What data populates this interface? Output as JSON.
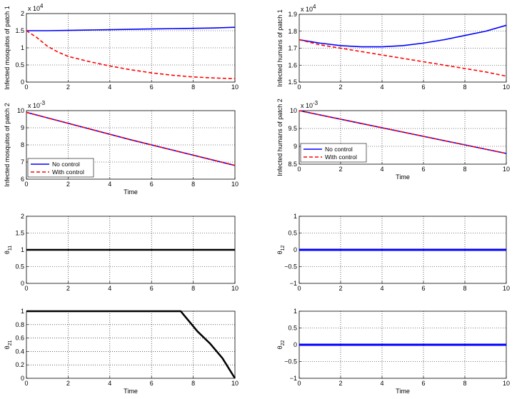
{
  "chart_data": [
    {
      "type": "line",
      "ylabel": "Infected mosquitos of patch 1",
      "xlabel": "",
      "exponent": "x 10^4",
      "xlim": [
        0,
        10
      ],
      "ylim": [
        0,
        2
      ],
      "xticks": [
        "0",
        "2",
        "4",
        "6",
        "8",
        "10"
      ],
      "yticks": [
        "0",
        "0.5",
        "1",
        "1.5",
        "2"
      ],
      "series": [
        {
          "name": "No control",
          "color": "#0000ff",
          "style": "solid",
          "x": [
            0,
            1,
            2,
            3,
            4,
            5,
            6,
            7,
            8,
            9,
            10
          ],
          "y": [
            1.5,
            1.5,
            1.51,
            1.52,
            1.53,
            1.54,
            1.55,
            1.56,
            1.57,
            1.58,
            1.6
          ]
        },
        {
          "name": "With control",
          "color": "#ff0000",
          "style": "dashed",
          "x": [
            0,
            0.5,
            1,
            1.5,
            2,
            3,
            4,
            5,
            6,
            7,
            8,
            9,
            10
          ],
          "y": [
            1.5,
            1.3,
            1.05,
            0.88,
            0.75,
            0.6,
            0.47,
            0.36,
            0.27,
            0.2,
            0.15,
            0.12,
            0.1
          ]
        }
      ]
    },
    {
      "type": "line",
      "ylabel": "Infected humans of patch 1",
      "xlabel": "",
      "exponent": "x 10^4",
      "xlim": [
        0,
        10
      ],
      "ylim": [
        1.5,
        1.9
      ],
      "xticks": [
        "0",
        "2",
        "4",
        "6",
        "8",
        "10"
      ],
      "yticks": [
        "1.5",
        "1.6",
        "1.7",
        "1.8",
        "1.9"
      ],
      "series": [
        {
          "name": "No control",
          "color": "#0000ff",
          "style": "solid",
          "x": [
            0,
            1,
            2,
            3,
            4,
            5,
            6,
            7,
            8,
            9,
            10
          ],
          "y": [
            1.75,
            1.73,
            1.715,
            1.708,
            1.708,
            1.715,
            1.73,
            1.75,
            1.775,
            1.8,
            1.835
          ]
        },
        {
          "name": "With control",
          "color": "#ff0000",
          "style": "dashed",
          "x": [
            0,
            1,
            2,
            3,
            4,
            5,
            6,
            7,
            8,
            9,
            10
          ],
          "y": [
            1.75,
            1.72,
            1.7,
            1.68,
            1.66,
            1.64,
            1.62,
            1.6,
            1.58,
            1.56,
            1.535
          ]
        }
      ]
    },
    {
      "type": "line",
      "ylabel": "Infected mosquitos of patch 2",
      "xlabel": "Time",
      "exponent": "x 10^-3",
      "xlim": [
        0,
        10
      ],
      "ylim": [
        6,
        10
      ],
      "xticks": [
        "0",
        "2",
        "4",
        "6",
        "8",
        "10"
      ],
      "yticks": [
        "6",
        "7",
        "8",
        "9",
        "10"
      ],
      "legend": {
        "placement": "bottom-left",
        "entries": [
          "No control",
          "With control"
        ]
      },
      "series": [
        {
          "name": "No control",
          "color": "#0000ff",
          "style": "solid",
          "x": [
            0,
            5,
            10
          ],
          "y": [
            9.9,
            8.3,
            6.8
          ]
        },
        {
          "name": "With control",
          "color": "#ff0000",
          "style": "dashed",
          "x": [
            0,
            5,
            10
          ],
          "y": [
            9.9,
            8.3,
            6.8
          ]
        }
      ]
    },
    {
      "type": "line",
      "ylabel": "Infected humans of patch 2",
      "xlabel": "Time",
      "exponent": "x 10^-3",
      "xlim": [
        0,
        10
      ],
      "ylim": [
        8.5,
        10
      ],
      "xticks": [
        "0",
        "2",
        "4",
        "6",
        "8",
        "10"
      ],
      "yticks": [
        "8.5",
        "9",
        "9.5",
        "10"
      ],
      "legend": {
        "placement": "bottom-left",
        "entries": [
          "No control",
          "With control"
        ]
      },
      "series": [
        {
          "name": "No control",
          "color": "#0000ff",
          "style": "solid",
          "x": [
            0,
            5,
            10
          ],
          "y": [
            10,
            9.4,
            8.8
          ]
        },
        {
          "name": "With control",
          "color": "#ff0000",
          "style": "dashed",
          "x": [
            0,
            5,
            10
          ],
          "y": [
            10,
            9.4,
            8.8
          ]
        }
      ]
    },
    {
      "type": "line",
      "ylabel": "θ11",
      "xlabel": "",
      "xlim": [
        0,
        10
      ],
      "ylim": [
        0,
        2
      ],
      "xticks": [
        "0",
        "2",
        "4",
        "6",
        "8",
        "10"
      ],
      "yticks": [
        "0",
        "0.5",
        "1",
        "1.5",
        "2"
      ],
      "series": [
        {
          "color": "#000000",
          "style": "solid",
          "width": 2.5,
          "x": [
            0,
            10
          ],
          "y": [
            1,
            1
          ]
        }
      ]
    },
    {
      "type": "line",
      "ylabel": "θ12",
      "xlabel": "",
      "xlim": [
        0,
        10
      ],
      "ylim": [
        -1,
        1
      ],
      "xticks": [
        "0",
        "2",
        "4",
        "6",
        "8",
        "10"
      ],
      "yticks": [
        "−1",
        "−0.5",
        "0",
        "0.5",
        "1"
      ],
      "series": [
        {
          "color": "#0000ff",
          "style": "solid",
          "width": 3,
          "x": [
            0,
            10
          ],
          "y": [
            0,
            0
          ]
        }
      ]
    },
    {
      "type": "line",
      "ylabel": "θ21",
      "xlabel": "Time",
      "xlim": [
        0,
        10
      ],
      "ylim": [
        0,
        1
      ],
      "xticks": [
        "0",
        "2",
        "4",
        "6",
        "8",
        "10"
      ],
      "yticks": [
        "0",
        "0.2",
        "0.4",
        "0.6",
        "0.8",
        "1"
      ],
      "series": [
        {
          "color": "#000000",
          "style": "solid",
          "width": 2.5,
          "x": [
            0,
            7.4,
            7.8,
            8.2,
            8.8,
            9.4,
            10
          ],
          "y": [
            1,
            1,
            0.85,
            0.7,
            0.52,
            0.3,
            0
          ]
        }
      ]
    },
    {
      "type": "line",
      "ylabel": "θ22",
      "xlabel": "Time",
      "xlim": [
        0,
        10
      ],
      "ylim": [
        -1,
        1
      ],
      "xticks": [
        "0",
        "2",
        "4",
        "6",
        "8",
        "10"
      ],
      "yticks": [
        "−1",
        "−0.5",
        "0",
        "0.5",
        "1"
      ],
      "series": [
        {
          "color": "#0000ff",
          "style": "solid",
          "width": 3,
          "x": [
            0,
            10
          ],
          "y": [
            0,
            0
          ]
        }
      ]
    }
  ]
}
